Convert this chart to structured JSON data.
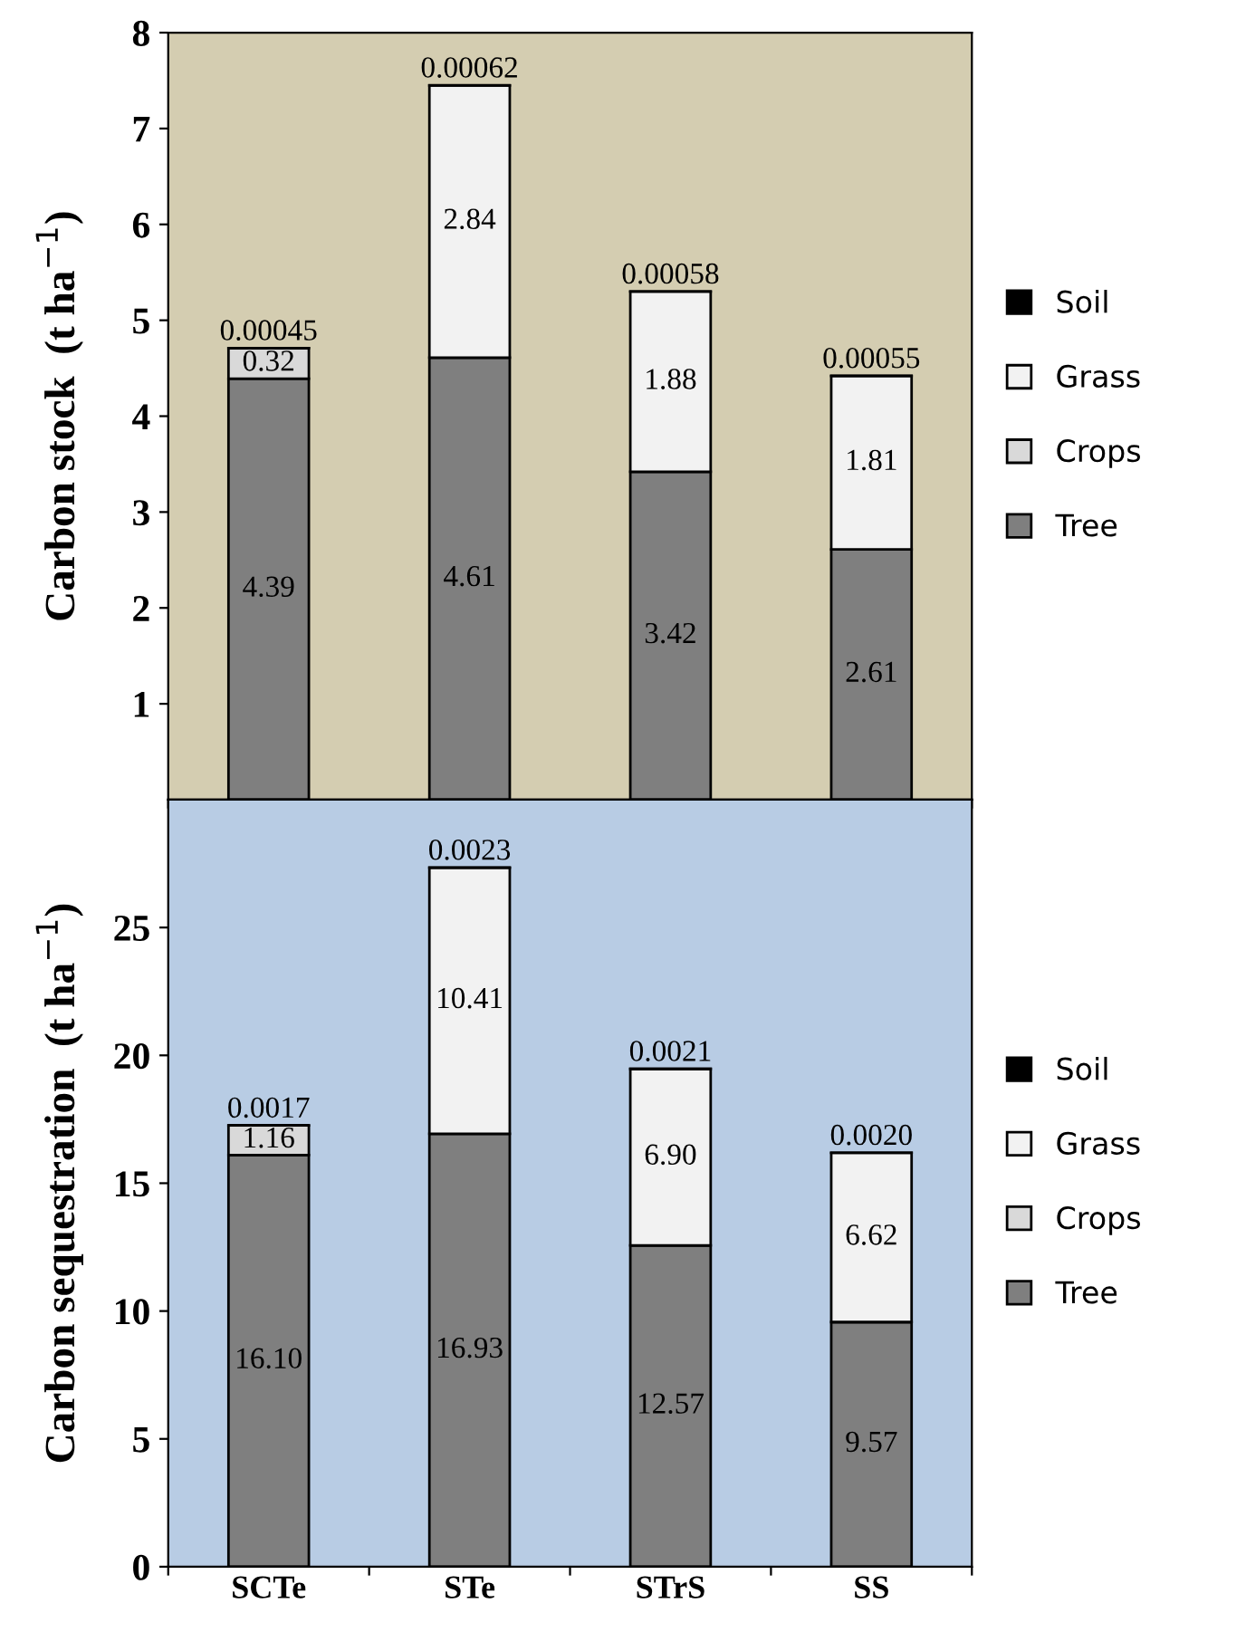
{
  "chart_data": [
    {
      "type": "bar",
      "stacked": true,
      "ylabel": "Carbon stock  (t ha$^{−1}$)",
      "categories": [
        null,
        null,
        null,
        null
      ],
      "ylim": [
        0,
        8
      ],
      "yticks": [
        1,
        2,
        3,
        4,
        5,
        6,
        7,
        8
      ],
      "tick_labels": "y",
      "legend": "right",
      "grid": false,
      "series": [
        {
          "name": "Tree",
          "color": "#7f7f7f",
          "values": [
            4.39,
            4.61,
            3.42,
            2.61
          ],
          "value_labels": [
            "4.39",
            "4.61",
            "3.42",
            "2.61"
          ]
        },
        {
          "name": "Crops",
          "color": "#d9d9d9",
          "values": [
            0.32,
            0,
            0,
            0
          ],
          "value_labels": [
            "0.32",
            null,
            null,
            null
          ]
        },
        {
          "name": "Grass",
          "color": "#f2f2f2",
          "values": [
            0,
            2.84,
            1.88,
            1.81
          ],
          "value_labels": [
            null,
            "2.84",
            "1.88",
            "1.81"
          ]
        },
        {
          "name": "Soil",
          "color": "#000000",
          "values": [
            0.00045,
            0.00062,
            0.00058,
            0.00055
          ],
          "value_labels": [
            "0.00045",
            "0.00062",
            "0.00058",
            "0.00055"
          ]
        }
      ]
    },
    {
      "type": "bar",
      "stacked": true,
      "ylabel": "Carbon sequestration  (t ha$^{−1}$)",
      "categories": [
        "SCTe",
        "STe",
        "STrS",
        "SS"
      ],
      "ylim": [
        0,
        30
      ],
      "yticks": [
        0,
        5,
        10,
        15,
        20,
        25
      ],
      "legend": "right",
      "grid": false,
      "series": [
        {
          "name": "Tree",
          "color": "#7f7f7f",
          "values": [
            16.1,
            16.93,
            12.57,
            9.57
          ],
          "value_labels": [
            "16.10",
            "16.93",
            "12.57",
            "9.57"
          ]
        },
        {
          "name": "Crops",
          "color": "#d9d9d9",
          "values": [
            1.16,
            0,
            0,
            0
          ],
          "value_labels": [
            "1.16",
            null,
            null,
            null
          ]
        },
        {
          "name": "Grass",
          "color": "#f2f2f2",
          "values": [
            0,
            10.41,
            6.9,
            6.62
          ],
          "value_labels": [
            null,
            "10.41",
            "6.90",
            "6.62"
          ]
        },
        {
          "name": "Soil",
          "color": "#000000",
          "values": [
            0.0017,
            0.0023,
            0.0021,
            0.002
          ],
          "value_labels": [
            "0.0017",
            "0.0023",
            "0.0021",
            "0.0020"
          ]
        }
      ]
    }
  ]
}
